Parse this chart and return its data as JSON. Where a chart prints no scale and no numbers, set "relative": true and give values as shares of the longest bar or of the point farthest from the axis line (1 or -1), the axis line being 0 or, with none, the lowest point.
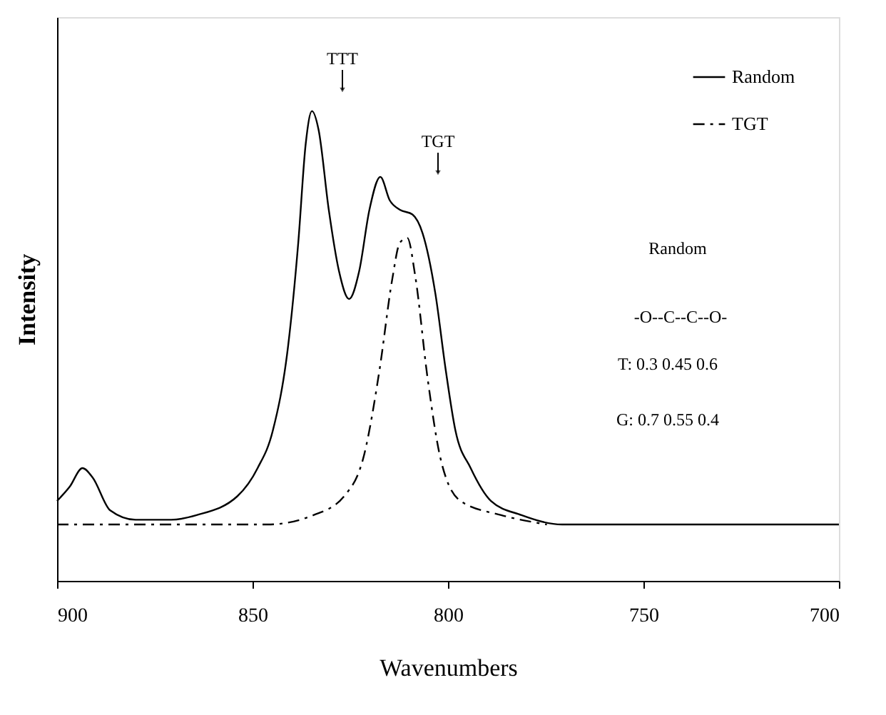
{
  "chart_data": {
    "type": "line",
    "relative": true,
    "xlabel": "Wavenumbers",
    "ylabel": "Intensity",
    "xlim": [
      900,
      700
    ],
    "xticks": [
      900,
      850,
      800,
      750,
      700
    ],
    "legend": "top right",
    "grid": false,
    "marker": "none",
    "series": [
      {
        "name": "Random",
        "color": "#000000",
        "line_style": "solid",
        "x": [
          900,
          896.8,
          893.5,
          890.9,
          886.4,
          879.9,
          870.8,
          864.3,
          853.9,
          848.7,
          844.8,
          840.9,
          838.3,
          836.4,
          834.8,
          833.1,
          830.5,
          827.9,
          825.3,
          822.7,
          820.1,
          817.3,
          814.9,
          812.3,
          809.1,
          806.5,
          803.2,
          800.6,
          798.1,
          794.2,
          789,
          781.2,
          770.8,
          760.4,
          700
        ],
        "values": [
          0.17,
          0.2,
          0.24,
          0.22,
          0.15,
          0.13,
          0.13,
          0.14,
          0.18,
          0.24,
          0.32,
          0.5,
          0.72,
          0.93,
          1.0,
          0.96,
          0.79,
          0.66,
          0.6,
          0.66,
          0.79,
          0.86,
          0.81,
          0.79,
          0.78,
          0.74,
          0.61,
          0.45,
          0.32,
          0.24,
          0.17,
          0.14,
          0.12,
          0.12,
          0.12
        ]
      },
      {
        "name": "TGT",
        "color": "#000000",
        "line_style": "dashdot",
        "x": [
          900,
          846.1,
          834.4,
          826.6,
          821.4,
          817.5,
          814.3,
          812.3,
          810.4,
          808.4,
          805.2,
          801.9,
          796.8,
          786.4,
          774.7
        ],
        "values": [
          0.12,
          0.12,
          0.14,
          0.18,
          0.27,
          0.45,
          0.64,
          0.72,
          0.73,
          0.65,
          0.43,
          0.26,
          0.17,
          0.14,
          0.12
        ]
      }
    ],
    "annotations": [
      "TTT",
      "TGT",
      "Random",
      "-O--C--C--O-",
      "T:  0.3   0.45   0.6",
      "G:  0.7   0.55   0.4"
    ]
  }
}
